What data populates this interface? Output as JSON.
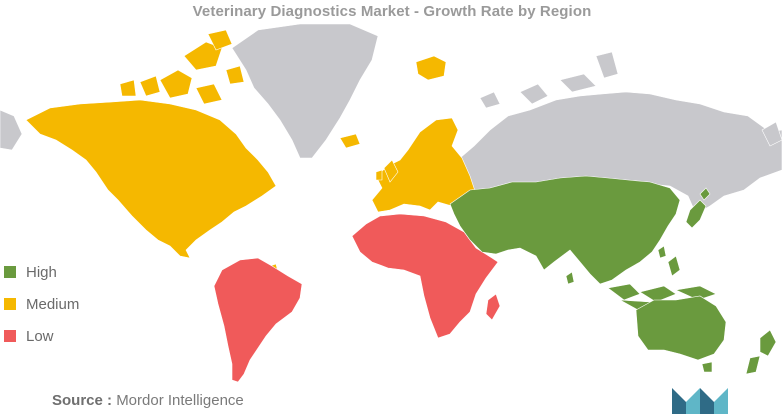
{
  "title": "Veterinary Diagnostics Market - Growth Rate by Region",
  "legend": [
    {
      "label": "High",
      "color": "#6a9a3e"
    },
    {
      "label": "Medium",
      "color": "#f5b800"
    },
    {
      "label": "Low",
      "color": "#f05a5a"
    }
  ],
  "no_data_color": "#c8c8cc",
  "regions": {
    "north_america": "Medium",
    "europe": "Medium",
    "south_america": "Low",
    "africa": "Low",
    "asia_pacific": "High",
    "russia_greenland": "none"
  },
  "source": {
    "label": "Source :",
    "text": "Mordor Intelligence"
  },
  "logo": {
    "icon": "mordor-intelligence-logo"
  }
}
